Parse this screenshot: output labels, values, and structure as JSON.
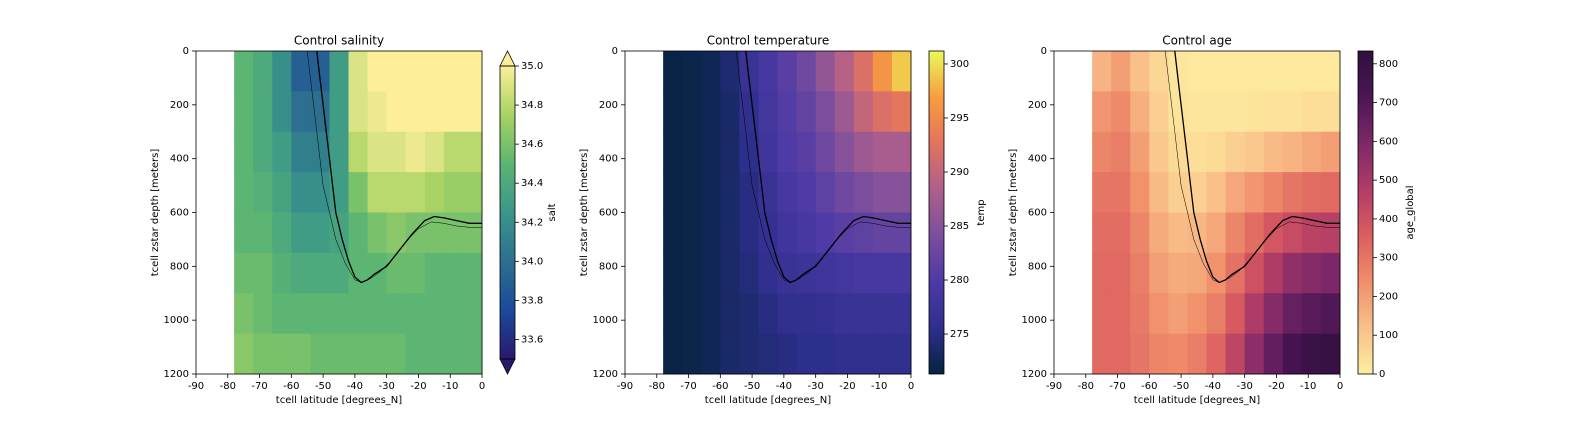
{
  "chart_data": [
    {
      "type": "heatmap",
      "title": "Control salinity",
      "xlabel": "tcell latitude [degrees_N]",
      "ylabel": "tcell zstar depth [meters]",
      "x_edges": [
        -78,
        -72,
        -66,
        -60,
        -54,
        -48,
        -42,
        -36,
        -30,
        -24,
        -18,
        -12,
        -6,
        0
      ],
      "y_edges": [
        0,
        150,
        300,
        450,
        600,
        750,
        900,
        1050,
        1200
      ],
      "z": [
        [
          34.5,
          34.4,
          34.2,
          33.9,
          33.9,
          34.3,
          34.9,
          35.0,
          35.0,
          35.0,
          35.0,
          35.0,
          35.0
        ],
        [
          34.5,
          34.4,
          34.2,
          34.0,
          34.0,
          34.3,
          34.9,
          34.95,
          35.0,
          35.0,
          35.0,
          35.0,
          35.0
        ],
        [
          34.5,
          34.4,
          34.3,
          34.1,
          34.1,
          34.3,
          34.8,
          34.9,
          34.9,
          34.95,
          34.9,
          34.8,
          34.8
        ],
        [
          34.5,
          34.45,
          34.35,
          34.2,
          34.2,
          34.3,
          34.6,
          34.8,
          34.8,
          34.8,
          34.75,
          34.7,
          34.7
        ],
        [
          34.5,
          34.5,
          34.4,
          34.3,
          34.3,
          34.35,
          34.5,
          34.6,
          34.65,
          34.6,
          34.6,
          34.6,
          34.6
        ],
        [
          34.55,
          34.55,
          34.45,
          34.4,
          34.4,
          34.4,
          34.5,
          34.5,
          34.55,
          34.55,
          34.5,
          34.5,
          34.5
        ],
        [
          34.6,
          34.55,
          34.5,
          34.5,
          34.5,
          34.5,
          34.5,
          34.5,
          34.5,
          34.5,
          34.5,
          34.5,
          34.5
        ],
        [
          34.65,
          34.6,
          34.6,
          34.6,
          34.55,
          34.55,
          34.55,
          34.55,
          34.55,
          34.5,
          34.5,
          34.5,
          34.5
        ]
      ],
      "xlim": [
        -90,
        0
      ],
      "xticks": [
        -90,
        -80,
        -70,
        -60,
        -50,
        -40,
        -30,
        -20,
        -10,
        0
      ],
      "ylim": [
        0,
        1200
      ],
      "yticks": [
        0,
        200,
        400,
        600,
        800,
        1000,
        1200
      ],
      "y_inverted": true,
      "colorbar": {
        "label": "salt",
        "lim": [
          33.5,
          35.0
        ],
        "ticks": [
          33.6,
          33.8,
          {
            "value": 34.0,
            "label": "34.0"
          },
          34.2,
          34.4,
          34.6,
          34.8,
          {
            "value": 35.0,
            "label": "35.0"
          }
        ],
        "extend": "both",
        "colors": [
          "#2a186c",
          "#1b4a9b",
          "#2d6f8e",
          "#3a968a",
          "#5cb572",
          "#a8d363",
          "#fdef9a"
        ]
      },
      "contours": [
        {
          "x": [
            -52,
            -51,
            -50,
            -49,
            -48,
            -47,
            -46,
            -44,
            -42,
            -40,
            -38,
            -36,
            -34,
            -30,
            -26,
            -22,
            -18,
            -15,
            -12,
            -8,
            -4,
            0
          ],
          "y": [
            0,
            100,
            200,
            300,
            400,
            500,
            600,
            700,
            780,
            840,
            860,
            850,
            830,
            800,
            740,
            680,
            630,
            615,
            620,
            630,
            640,
            640
          ]
        },
        {
          "x": [
            -55,
            -54,
            -53,
            -52,
            -51,
            -50,
            -48,
            -46,
            -43,
            -40,
            -38,
            -35,
            -32,
            -28,
            -24,
            -20,
            -16,
            -12,
            -8,
            -4,
            0
          ],
          "y": [
            0,
            100,
            200,
            300,
            400,
            500,
            600,
            700,
            790,
            850,
            860,
            845,
            820,
            770,
            710,
            660,
            635,
            640,
            650,
            655,
            655
          ]
        }
      ]
    },
    {
      "type": "heatmap",
      "title": "Control temperature",
      "xlabel": "tcell latitude [degrees_N]",
      "ylabel": "tcell zstar depth [meters]",
      "x_edges": [
        -78,
        -72,
        -66,
        -60,
        -54,
        -48,
        -42,
        -36,
        -30,
        -24,
        -18,
        -12,
        -6,
        0
      ],
      "y_edges": [
        0,
        150,
        300,
        450,
        600,
        750,
        900,
        1050,
        1200
      ],
      "z": [
        [
          271.8,
          272,
          272.5,
          274,
          277,
          279,
          281,
          283,
          286,
          289,
          292,
          296,
          299
        ],
        [
          271.8,
          272,
          272.5,
          273.5,
          276,
          278.5,
          280.5,
          282,
          284,
          287,
          290,
          292,
          293
        ],
        [
          271.8,
          272,
          272.5,
          273.5,
          275.5,
          278,
          280,
          281,
          283,
          285,
          287,
          288,
          288
        ],
        [
          271.8,
          272,
          272.5,
          273.5,
          275,
          277,
          279,
          280,
          281.5,
          283,
          284,
          285,
          285
        ],
        [
          271.8,
          272,
          272.5,
          273.5,
          275,
          276.5,
          278,
          279,
          280,
          281,
          281.5,
          282,
          282
        ],
        [
          271.8,
          272,
          272.5,
          273.5,
          274.5,
          276,
          277,
          277.5,
          278,
          278.5,
          279,
          279,
          279
        ],
        [
          271.8,
          272,
          272.5,
          273.5,
          274,
          275,
          276,
          276,
          276.5,
          277,
          277,
          277,
          277
        ],
        [
          271.8,
          272,
          272.5,
          273.5,
          274,
          274.5,
          275,
          275.5,
          275.5,
          276,
          276,
          276,
          276
        ]
      ],
      "xlim": [
        -90,
        0
      ],
      "xticks": [
        -90,
        -80,
        -70,
        -60,
        -50,
        -40,
        -30,
        -20,
        -10,
        0
      ],
      "ylim": [
        0,
        1200
      ],
      "yticks": [
        0,
        200,
        400,
        600,
        800,
        1000,
        1200
      ],
      "y_inverted": true,
      "colorbar": {
        "label": "temp",
        "lim": [
          271.3,
          301.2
        ],
        "ticks": [
          275,
          280,
          285,
          290,
          295,
          300
        ],
        "extend": "neither",
        "colors": [
          "#04233e",
          "#2e2f8d",
          "#4c3aa5",
          "#7b4e9d",
          "#ae5f8c",
          "#e2735f",
          "#f99d3e",
          "#e8fa5b"
        ]
      },
      "contours": [
        {
          "x": [
            -52,
            -51,
            -50,
            -49,
            -48,
            -47,
            -46,
            -44,
            -42,
            -40,
            -38,
            -36,
            -34,
            -30,
            -26,
            -22,
            -18,
            -15,
            -12,
            -8,
            -4,
            0
          ],
          "y": [
            0,
            100,
            200,
            300,
            400,
            500,
            600,
            700,
            780,
            840,
            860,
            850,
            830,
            800,
            740,
            680,
            630,
            615,
            620,
            630,
            640,
            640
          ]
        },
        {
          "x": [
            -55,
            -54,
            -53,
            -52,
            -51,
            -50,
            -48,
            -46,
            -43,
            -40,
            -38,
            -35,
            -32,
            -28,
            -24,
            -20,
            -16,
            -12,
            -8,
            -4,
            0
          ],
          "y": [
            0,
            100,
            200,
            300,
            400,
            500,
            600,
            700,
            790,
            850,
            860,
            845,
            820,
            770,
            710,
            660,
            635,
            640,
            650,
            655,
            655
          ]
        }
      ]
    },
    {
      "type": "heatmap",
      "title": "Control age",
      "xlabel": "tcell latitude [degrees_N]",
      "ylabel": "tcell zstar depth [meters]",
      "x_edges": [
        -78,
        -72,
        -66,
        -60,
        -54,
        -48,
        -42,
        -36,
        -30,
        -24,
        -18,
        -12,
        -6,
        0
      ],
      "y_edges": [
        0,
        150,
        300,
        450,
        600,
        750,
        900,
        1050,
        1200
      ],
      "z": [
        [
          150,
          200,
          120,
          60,
          20,
          10,
          10,
          10,
          10,
          10,
          10,
          10,
          10
        ],
        [
          220,
          250,
          160,
          80,
          30,
          20,
          20,
          20,
          25,
          30,
          30,
          40,
          40
        ],
        [
          260,
          280,
          200,
          100,
          50,
          40,
          50,
          80,
          100,
          130,
          150,
          180,
          200
        ],
        [
          300,
          300,
          230,
          130,
          80,
          80,
          120,
          180,
          220,
          260,
          300,
          320,
          330
        ],
        [
          320,
          320,
          260,
          170,
          130,
          140,
          180,
          260,
          320,
          380,
          420,
          450,
          460
        ],
        [
          330,
          330,
          280,
          200,
          170,
          180,
          230,
          310,
          400,
          480,
          550,
          580,
          600
        ],
        [
          330,
          330,
          290,
          230,
          200,
          230,
          280,
          370,
          480,
          580,
          650,
          680,
          700
        ],
        [
          330,
          330,
          300,
          260,
          250,
          280,
          340,
          440,
          560,
          660,
          740,
          780,
          800
        ]
      ],
      "xlim": [
        -90,
        0
      ],
      "xticks": [
        -90,
        -80,
        -70,
        -60,
        -50,
        -40,
        -30,
        -20,
        -10,
        0
      ],
      "ylim": [
        0,
        1200
      ],
      "yticks": [
        0,
        200,
        400,
        600,
        800,
        1000,
        1200
      ],
      "y_inverted": true,
      "colorbar": {
        "label": "age_global",
        "lim": [
          0,
          833
        ],
        "ticks": [
          0,
          100,
          200,
          300,
          400,
          500,
          600,
          700,
          800
        ],
        "extend": "neither",
        "colors": [
          "#fdeda0",
          "#f9c089",
          "#f08f6b",
          "#db5e5f",
          "#b13c67",
          "#7e2868",
          "#4b1655",
          "#2f0f3d"
        ]
      },
      "contours": [
        {
          "x": [
            -52,
            -51,
            -50,
            -49,
            -48,
            -47,
            -46,
            -44,
            -42,
            -40,
            -38,
            -36,
            -34,
            -30,
            -26,
            -22,
            -18,
            -15,
            -12,
            -8,
            -4,
            0
          ],
          "y": [
            0,
            100,
            200,
            300,
            400,
            500,
            600,
            700,
            780,
            840,
            860,
            850,
            830,
            800,
            740,
            680,
            630,
            615,
            620,
            630,
            640,
            640
          ]
        },
        {
          "x": [
            -55,
            -54,
            -53,
            -52,
            -51,
            -50,
            -48,
            -46,
            -43,
            -40,
            -38,
            -35,
            -32,
            -28,
            -24,
            -20,
            -16,
            -12,
            -8,
            -4,
            0
          ],
          "y": [
            0,
            100,
            200,
            300,
            400,
            500,
            600,
            700,
            790,
            850,
            860,
            845,
            820,
            770,
            710,
            660,
            635,
            640,
            650,
            655,
            655
          ]
        }
      ]
    }
  ]
}
